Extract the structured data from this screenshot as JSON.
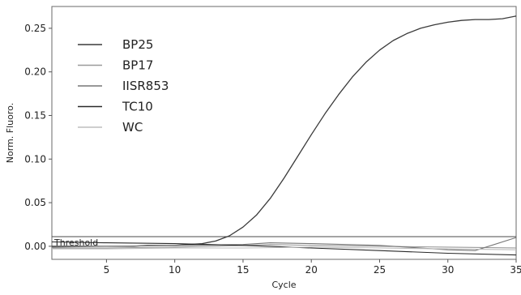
{
  "chart_data": {
    "type": "line",
    "title": "",
    "xlabel": "Cycle",
    "ylabel": "Norm. Fluoro.",
    "xlim": [
      1,
      35
    ],
    "ylim": [
      -0.015,
      0.275
    ],
    "x_ticks": [
      5,
      10,
      15,
      20,
      25,
      30,
      35
    ],
    "y_ticks": [
      0.0,
      0.05,
      0.1,
      0.15,
      0.2,
      0.25
    ],
    "y_tick_labels": [
      "0.00",
      "0.05",
      "0.10",
      "0.15",
      "0.20",
      "0.25"
    ],
    "grid": false,
    "legend_position": "top-left",
    "threshold": {
      "label": "Threshold",
      "value": 0.011
    },
    "series": [
      {
        "name": "BP25",
        "color": "#3a3a3a",
        "x": [
          1,
          2,
          3,
          4,
          5,
          6,
          7,
          8,
          9,
          10,
          11,
          12,
          13,
          14,
          15,
          16,
          17,
          18,
          19,
          20,
          21,
          22,
          23,
          24,
          25,
          26,
          27,
          28,
          29,
          30,
          31,
          32,
          33,
          34,
          35
        ],
        "y": [
          0,
          0,
          0,
          0,
          0,
          0,
          0,
          0.001,
          0.001,
          0.001,
          0.002,
          0.003,
          0.006,
          0.012,
          0.022,
          0.036,
          0.055,
          0.078,
          0.103,
          0.128,
          0.152,
          0.174,
          0.194,
          0.211,
          0.225,
          0.236,
          0.244,
          0.25,
          0.254,
          0.257,
          0.259,
          0.26,
          0.26,
          0.261,
          0.264
        ]
      },
      {
        "name": "BP17",
        "color": "#9a9a9a",
        "x": [
          1,
          5,
          10,
          15,
          17,
          20,
          25,
          30,
          35
        ],
        "y": [
          -0.002,
          -0.002,
          -0.001,
          0.001,
          0.002,
          0.001,
          0,
          -0.001,
          -0.002
        ]
      },
      {
        "name": "IISR853",
        "color": "#777777",
        "x": [
          1,
          5,
          10,
          15,
          17,
          20,
          25,
          30,
          32,
          35
        ],
        "y": [
          -0.001,
          0,
          0.001,
          0.002,
          0.004,
          0.003,
          0.001,
          -0.004,
          -0.005,
          0.01
        ]
      },
      {
        "name": "TC10",
        "color": "#2a2a2a",
        "x": [
          1,
          5,
          10,
          15,
          17,
          20,
          25,
          30,
          35
        ],
        "y": [
          0.005,
          0.004,
          0.003,
          0.001,
          0,
          -0.002,
          -0.005,
          -0.008,
          -0.01
        ]
      },
      {
        "name": "WC",
        "color": "#bdbdbd",
        "x": [
          1,
          5,
          10,
          15,
          20,
          25,
          30,
          35
        ],
        "y": [
          -0.003,
          -0.003,
          -0.002,
          -0.002,
          -0.001,
          -0.002,
          -0.003,
          -0.004
        ]
      }
    ]
  }
}
